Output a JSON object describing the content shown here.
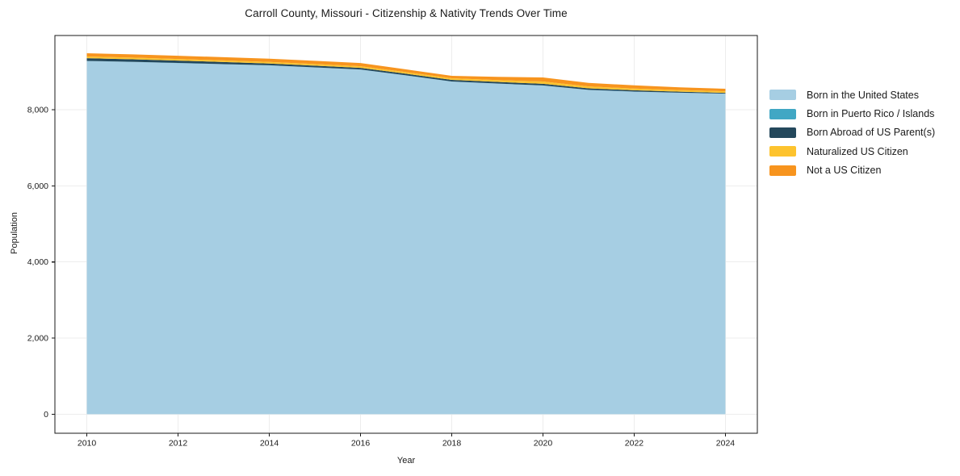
{
  "chart_data": {
    "type": "area",
    "stacked": true,
    "title": "Carroll County, Missouri - Citizenship & Nativity Trends Over Time",
    "xlabel": "Year",
    "ylabel": "Population",
    "x": [
      2010,
      2011,
      2012,
      2013,
      2014,
      2015,
      2016,
      2017,
      2018,
      2019,
      2020,
      2021,
      2022,
      2023,
      2024
    ],
    "series": [
      {
        "name": "Born in the United States",
        "color": "#A6CEE3",
        "values": [
          9280,
          9255,
          9225,
          9195,
          9165,
          9110,
          9055,
          8900,
          8740,
          8685,
          8635,
          8520,
          8475,
          8445,
          8420
        ]
      },
      {
        "name": "Born in Puerto Rico / Islands",
        "color": "#41A7C4",
        "values": [
          3,
          3,
          3,
          3,
          3,
          3,
          3,
          3,
          3,
          3,
          3,
          3,
          3,
          3,
          3
        ]
      },
      {
        "name": "Born Abroad of US Parent(s)",
        "color": "#24485C",
        "values": [
          70,
          67,
          63,
          55,
          46,
          44,
          42,
          42,
          42,
          42,
          42,
          38,
          32,
          26,
          20
        ]
      },
      {
        "name": "Naturalized US Citizen",
        "color": "#FDC32E",
        "values": [
          45,
          44,
          42,
          42,
          42,
          42,
          42,
          42,
          42,
          48,
          63,
          52,
          45,
          43,
          42
        ]
      },
      {
        "name": "Not a US Citizen",
        "color": "#F7941E",
        "values": [
          85,
          85,
          85,
          85,
          85,
          85,
          85,
          72,
          64,
          85,
          105,
          92,
          85,
          72,
          65
        ]
      }
    ],
    "xticks": [
      2010,
      2012,
      2014,
      2016,
      2018,
      2020,
      2022,
      2024
    ],
    "yticks": [
      0,
      2000,
      4000,
      6000,
      8000
    ],
    "xlim": [
      2009.3,
      2024.7
    ],
    "ylim": [
      -500,
      9950
    ],
    "grid": true,
    "legend_position": "right"
  },
  "colors": {
    "background": "#ffffff",
    "grid": "#ededed",
    "axis": "#1a1a1a",
    "tick_text": "#1a1a1a"
  }
}
